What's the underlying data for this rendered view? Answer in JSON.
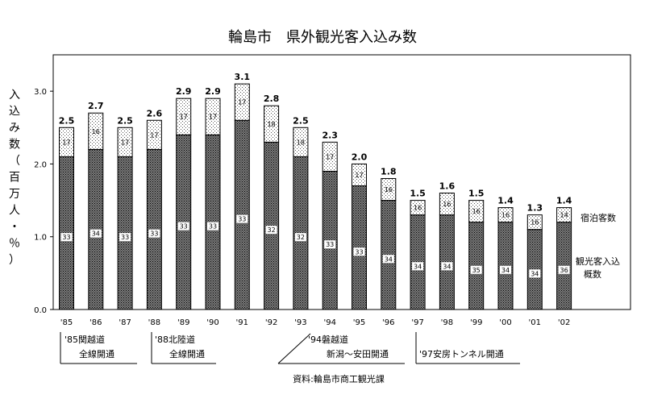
{
  "chart_data": {
    "type": "bar",
    "stacked": true,
    "title": "輪島市　県外観光客入込み数",
    "ylabel_chars": [
      "入",
      "込",
      "み",
      "数",
      "（",
      "百",
      "万",
      "人",
      "・",
      "％",
      "）"
    ],
    "ylim": [
      0,
      3.5
    ],
    "yticks": [
      "0.0",
      "1.0",
      "2.0",
      "3.0"
    ],
    "categories": [
      "'85",
      "'86",
      "'87",
      "'88",
      "'89",
      "'90",
      "'91",
      "'92",
      "'93",
      "'94",
      "'95",
      "'96",
      "'97",
      "'98",
      "'99",
      "'00",
      "'01",
      "'02"
    ],
    "totals": [
      "2.5",
      "2.7",
      "2.5",
      "2.6",
      "2.9",
      "2.9",
      "3.1",
      "2.8",
      "2.5",
      "2.3",
      "2.0",
      "1.8",
      "1.5",
      "1.6",
      "1.5",
      "1.4",
      "1.3",
      "1.4"
    ],
    "series": [
      {
        "name": "観光客入込概数",
        "values": [
          2.1,
          2.2,
          2.1,
          2.2,
          2.4,
          2.4,
          2.6,
          2.3,
          2.1,
          1.9,
          1.7,
          1.5,
          1.3,
          1.3,
          1.2,
          1.2,
          1.1,
          1.2
        ],
        "percent_labels": [
          "33",
          "34",
          "33",
          "33",
          "33",
          "33",
          "33",
          "32",
          "32",
          "33",
          "33",
          "34",
          "34",
          "34",
          "35",
          "34",
          "34",
          "36"
        ]
      },
      {
        "name": "宿泊客数",
        "values": [
          0.4,
          0.5,
          0.4,
          0.4,
          0.5,
          0.5,
          0.5,
          0.5,
          0.4,
          0.4,
          0.3,
          0.3,
          0.2,
          0.3,
          0.3,
          0.2,
          0.2,
          0.2
        ],
        "percent_labels": [
          "17",
          "16",
          "17",
          "17",
          "17",
          "17",
          "17",
          "18",
          "18",
          "17",
          "17",
          "16",
          "16",
          "16",
          "16",
          "16",
          "16",
          "14"
        ]
      }
    ],
    "legend": {
      "upper": "宿泊客数",
      "lower_line1": "観光客入込",
      "lower_line2": "概数"
    },
    "annotations": [
      {
        "line1": "'85関越道",
        "line2": "全線開通"
      },
      {
        "line1": "'88北陸道",
        "line2": "全線開通"
      },
      {
        "line1": "'94磐越道",
        "line2": "新潟～安田開通"
      },
      {
        "line1": "'97安房トンネル開通"
      }
    ],
    "source": "資料:輪島市商工観光課"
  }
}
